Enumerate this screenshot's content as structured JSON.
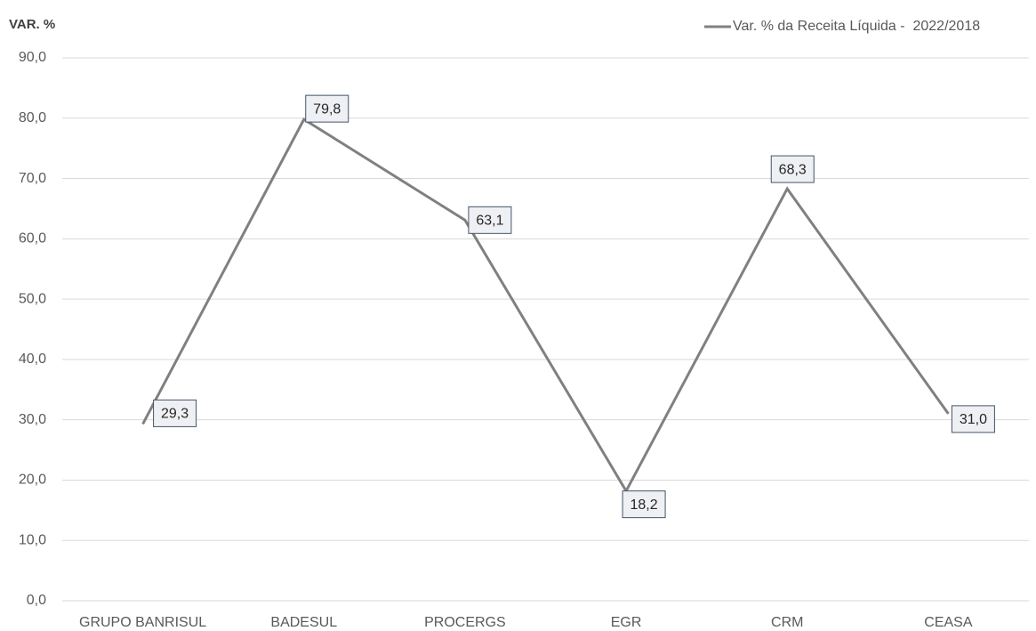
{
  "chart_data": {
    "type": "line",
    "y_axis_label": "VAR. %",
    "categories": [
      "GRUPO BANRISUL",
      "BADESUL",
      "PROCERGS",
      "EGR",
      "CRM",
      "CEASA"
    ],
    "series": [
      {
        "name": "Var. % da Receita Líquida -  2022/2018",
        "color": "#808080",
        "values": [
          29.3,
          79.8,
          63.1,
          18.2,
          68.3,
          31.0
        ],
        "value_labels": [
          "29,3",
          "79,8",
          "63,1",
          "18,2",
          "68,3",
          "31,0"
        ]
      }
    ],
    "ylim": [
      0,
      90
    ],
    "yticks": [
      {
        "value": 0,
        "label": "0,0"
      },
      {
        "value": 10,
        "label": "10,0"
      },
      {
        "value": 20,
        "label": "20,0"
      },
      {
        "value": 30,
        "label": "30,0"
      },
      {
        "value": 40,
        "label": "40,0"
      },
      {
        "value": 50,
        "label": "50,0"
      },
      {
        "value": 60,
        "label": "60,0"
      },
      {
        "value": 70,
        "label": "70,0"
      },
      {
        "value": 80,
        "label": "80,0"
      },
      {
        "value": 90,
        "label": "90,0"
      }
    ],
    "grid": true,
    "legend": "top-right"
  }
}
